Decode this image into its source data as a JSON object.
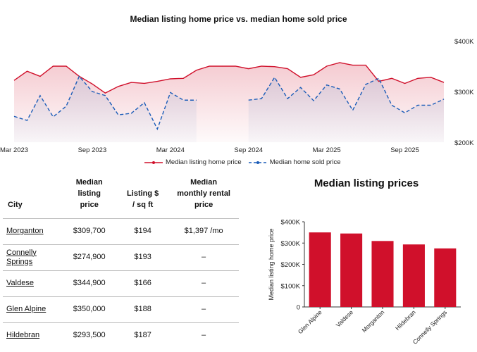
{
  "line_chart": {
    "title": "Median listing home price vs. median home sold price",
    "legend": {
      "listing": "Median listing home price",
      "sold": "Median home sold price"
    }
  },
  "table": {
    "headers": [
      "City",
      "Median listing price",
      "Listing $ / sq ft",
      "Median monthly rental price"
    ],
    "rows": [
      {
        "city": "Morganton",
        "listing": "$309,700",
        "sqft": "$194",
        "rent": "$1,397 /mo"
      },
      {
        "city": "Connelly Springs",
        "listing": "$274,900",
        "sqft": "$193",
        "rent": "–"
      },
      {
        "city": "Valdese",
        "listing": "$344,900",
        "sqft": "$166",
        "rent": "–"
      },
      {
        "city": "Glen Alpine",
        "listing": "$350,000",
        "sqft": "$188",
        "rent": "–"
      },
      {
        "city": "Hildebran",
        "listing": "$293,500",
        "sqft": "$187",
        "rent": "–"
      }
    ]
  },
  "bar_chart": {
    "title": "Median listing prices"
  },
  "colors": {
    "listing": "#d0102b",
    "sold": "#1a5cb8",
    "bar": "#d0102b"
  },
  "chart_data": [
    {
      "type": "line",
      "title": "Median listing home price vs. median home sold price",
      "x_ticks": [
        "Mar 2023",
        "Sep 2023",
        "Mar 2024",
        "Sep 2024",
        "Mar 2025",
        "Sep 2025"
      ],
      "y_ticks": [
        "$400K",
        "$300K",
        "$200K"
      ],
      "ylim": [
        200000,
        400000
      ],
      "y_axis_side": "right",
      "legend_position": "bottom",
      "x_start": "2023-03",
      "x_end": "2025-12",
      "series": [
        {
          "name": "Median listing home price",
          "style": "solid-area",
          "x": [
            "2023-03",
            "2023-04",
            "2023-05",
            "2023-06",
            "2023-07",
            "2023-08",
            "2023-09",
            "2023-10",
            "2023-11",
            "2023-12",
            "2024-01",
            "2024-02",
            "2024-03",
            "2024-04",
            "2024-05",
            "2024-06",
            "2024-07",
            "2024-08",
            "2024-09",
            "2024-10",
            "2024-11",
            "2024-12",
            "2025-01",
            "2025-02",
            "2025-03",
            "2025-04",
            "2025-05",
            "2025-06",
            "2025-07",
            "2025-08",
            "2025-09",
            "2025-10",
            "2025-11",
            "2025-12"
          ],
          "values": [
            322000,
            340000,
            330000,
            350000,
            350000,
            330000,
            315000,
            297000,
            310000,
            318000,
            316000,
            320000,
            325000,
            326000,
            342000,
            350000,
            350000,
            350000,
            345000,
            350000,
            349000,
            345000,
            328000,
            333000,
            350000,
            357000,
            352000,
            352000,
            320000,
            326000,
            316000,
            326000,
            328000,
            318000
          ]
        },
        {
          "name": "Median home sold price",
          "style": "dashed-area",
          "x": [
            "2023-03",
            "2023-04",
            "2023-05",
            "2023-06",
            "2023-07",
            "2023-08",
            "2023-09",
            "2023-10",
            "2023-11",
            "2023-12",
            "2024-01",
            "2024-02",
            "2024-03",
            "2024-04",
            "2024-05",
            "2024-06",
            "2024-07",
            "2024-08",
            "2024-09",
            "2024-10",
            "2024-11",
            "2024-12",
            "2025-01",
            "2025-02",
            "2025-03",
            "2025-04",
            "2025-05",
            "2025-06",
            "2025-07",
            "2025-08",
            "2025-09",
            "2025-10",
            "2025-11",
            "2025-12"
          ],
          "values": [
            251000,
            243000,
            292000,
            250000,
            271000,
            330000,
            300000,
            292000,
            254000,
            257000,
            278000,
            226000,
            298000,
            283000,
            283000,
            null,
            null,
            null,
            283000,
            286000,
            328000,
            286000,
            308000,
            282000,
            313000,
            305000,
            263000,
            314000,
            326000,
            273000,
            258000,
            273000,
            273000,
            285000
          ]
        }
      ]
    },
    {
      "type": "bar",
      "title": "Median listing prices",
      "ylabel": "Median listing home price",
      "categories": [
        "Glen Alpine",
        "Valdese",
        "Morganton",
        "Hildebran",
        "Connelly Springs"
      ],
      "values": [
        350000,
        344900,
        309700,
        293500,
        274900
      ],
      "y_ticks": [
        "0",
        "$100K",
        "$200K",
        "$300K",
        "$400K"
      ],
      "ylim": [
        0,
        400000
      ]
    }
  ]
}
